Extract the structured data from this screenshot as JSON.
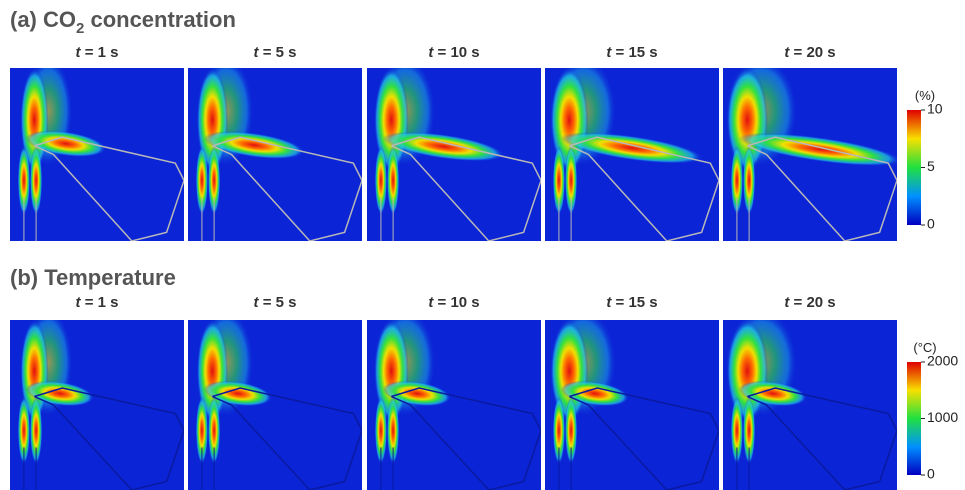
{
  "panels": [
    {
      "title": {
        "pre": "(a) CO",
        "sub": "2",
        "post": " concentration"
      },
      "time_var": "t",
      "frames": [
        "= 1 s",
        "= 5 s",
        "= 10 s",
        "= 15 s",
        "= 20 s"
      ],
      "colorbar": {
        "unit": "(%)",
        "lim": [
          0,
          10
        ],
        "ticks": [
          0,
          5,
          10
        ]
      }
    },
    {
      "title": "(b) Temperature",
      "time_var": "t",
      "frames": [
        "= 1 s",
        "= 5 s",
        "= 10 s",
        "= 15 s",
        "= 20 s"
      ],
      "colorbar": {
        "unit": "(°C)",
        "lim": [
          0,
          2000
        ],
        "ticks": [
          0,
          1000,
          2000
        ]
      }
    }
  ]
}
